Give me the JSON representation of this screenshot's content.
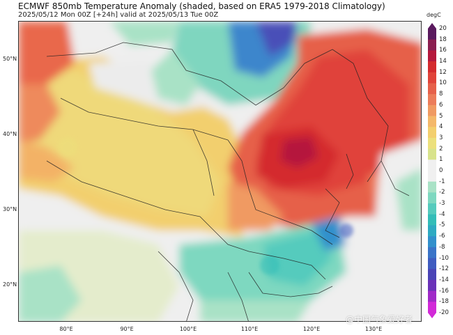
{
  "header": {
    "title": "ECMWF 850mb Temperature Anomaly (shaded, based on ERA5 1979-2018 Climatology)",
    "subtitle": "2025/05/12 Mon 00Z [+24h] valid at 2025/05/13 Tue 00Z"
  },
  "map": {
    "lat_labels": [
      "50°N",
      "40°N",
      "30°N",
      "20°N"
    ],
    "lon_labels": [
      "80°E",
      "90°E",
      "100°E",
      "110°E",
      "120°E",
      "130°E"
    ]
  },
  "colorbar": {
    "unit": "degC",
    "labels": [
      "20",
      "18",
      "16",
      "14",
      "12",
      "10",
      "8",
      "6",
      "5",
      "4",
      "3",
      "2",
      "1",
      "0",
      "-1",
      "-2",
      "-3",
      "-4",
      "-5",
      "-6",
      "-8",
      "-10",
      "-12",
      "-14",
      "-16",
      "-18",
      "-20"
    ],
    "colors": [
      "#5a1a5e",
      "#8b1e50",
      "#b5183c",
      "#d42a2e",
      "#e0433a",
      "#e6604a",
      "#ec7c5a",
      "#f09a62",
      "#f4b86a",
      "#f3cf6e",
      "#ece07c",
      "#d8e38c",
      "#f0f0f0",
      "#f0f0f0",
      "#a9e2c6",
      "#7ed8c0",
      "#55cbbd",
      "#33bdb8",
      "#2eaac2",
      "#3290cc",
      "#3a74c8",
      "#3f5cc0",
      "#4a44b6",
      "#6a32b8",
      "#a02ac8",
      "#d22ad8"
    ]
  },
  "watermark": "@中国气象爱好者"
}
